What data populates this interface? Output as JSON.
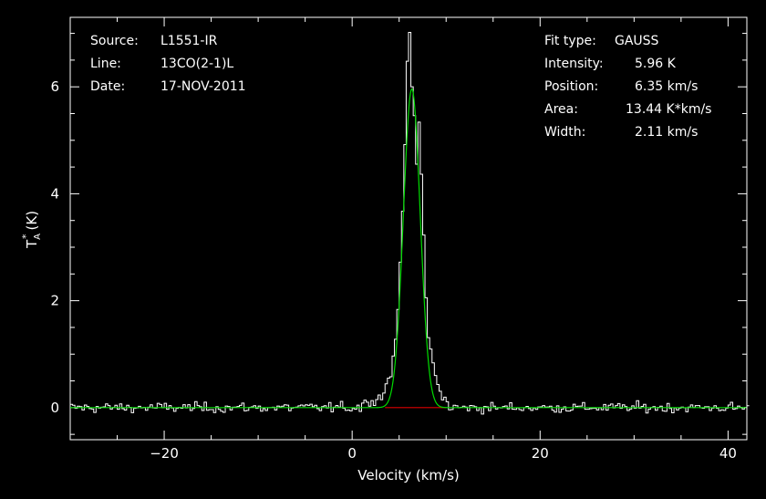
{
  "header_left": {
    "source_label": "Source:",
    "source_value": "L1551-IR",
    "line_label": "Line:",
    "line_value": "13CO(2-1)L",
    "date_label": "Date:",
    "date_value": "17-NOV-2011"
  },
  "header_right": {
    "fit_label": "Fit type:",
    "fit_value": "GAUSS",
    "intensity_label": "Intensity:",
    "intensity_value": "5.96 K",
    "position_label": "Position:",
    "position_value": "6.35 km/s",
    "area_label": "Area:",
    "area_value": "13.44 K*km/s",
    "width_label": "Width:",
    "width_value": "2.11 km/s"
  },
  "colors": {
    "background": "#000000",
    "spectrum": "#ffffff",
    "fit": "#00dd00",
    "fit_window": "#dd0000"
  },
  "chart_data": {
    "type": "line",
    "xlabel": "Velocity (km/s)",
    "ylabel_main": "T",
    "ylabel_sup": "*",
    "ylabel_sub": "A",
    "ylabel_unit": "(K)",
    "xlim": [
      -30,
      42
    ],
    "ylim": [
      -0.6,
      7.3
    ],
    "x_ticks": [
      -20,
      0,
      20,
      40
    ],
    "y_ticks": [
      0,
      2,
      4,
      6
    ],
    "gaussian_fit": {
      "amplitude": 5.96,
      "center": 6.35,
      "fwhm": 2.11
    },
    "fit_window": [
      3.5,
      10.0
    ],
    "spectrum": {
      "x": [
        1.0,
        2.0,
        2.5,
        3.0,
        3.5,
        4.0,
        4.5,
        4.75,
        5.0,
        5.25,
        5.5,
        5.75,
        6.0,
        6.25,
        6.5,
        6.75,
        7.0,
        7.25,
        7.5,
        7.75,
        8.0,
        8.5,
        9.0,
        9.5,
        10.0
      ],
      "y": [
        0.15,
        0.05,
        0.25,
        0.2,
        0.45,
        0.6,
        1.3,
        1.9,
        2.7,
        3.6,
        4.9,
        6.5,
        7.0,
        6.1,
        5.5,
        4.6,
        5.4,
        4.3,
        3.1,
        2.1,
        1.3,
        0.8,
        0.4,
        0.2,
        0.1
      ]
    }
  }
}
